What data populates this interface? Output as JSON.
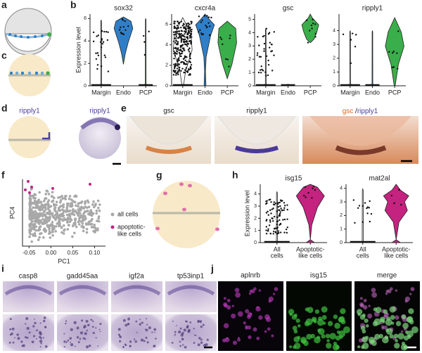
{
  "panel_labels": {
    "a": "a",
    "b": "b",
    "c": "c",
    "d": "d",
    "e": "e",
    "f": "f",
    "g": "g",
    "h": "h",
    "i": "i",
    "j": "j"
  },
  "chart_b": {
    "type": "violin",
    "y_label": "Expression level",
    "categories": [
      "Margin",
      "Endo",
      "PCP"
    ],
    "colors": [
      "#ffffff",
      "#2f7fc8",
      "#3aae4a"
    ],
    "plots": [
      {
        "title": "sox32",
        "ylim": [
          0,
          6.4
        ],
        "yticks": [
          0,
          2,
          4,
          6
        ]
      },
      {
        "title": "cxcr4a",
        "ylim": [
          0,
          7
        ],
        "yticks": [
          0,
          2,
          4,
          6
        ]
      },
      {
        "title": "gsc",
        "ylim": [
          0,
          5.4
        ],
        "yticks": [
          0,
          1,
          2,
          3,
          4,
          5
        ]
      },
      {
        "title": "ripply1",
        "ylim": [
          0,
          5.2
        ],
        "yticks": [
          0,
          1,
          2,
          3,
          4
        ]
      }
    ]
  },
  "panel_d": {
    "schematic_label": "ripply1",
    "image_label": "ripply1"
  },
  "panel_e": {
    "images": [
      "gsc",
      "ripply1"
    ],
    "merge": {
      "first": "gsc",
      "separator": "/",
      "second": "ripply1"
    }
  },
  "chart_f": {
    "type": "scatter",
    "x_label": "PC1",
    "y_label": "PC4",
    "xlim": [
      -0.065,
      0.125
    ],
    "xticks": [
      -0.05,
      {
        "value": 0,
        "label": "0.00"
      },
      0.05,
      {
        "value": 0.1,
        "label": "0.10"
      }
    ],
    "legend": [
      {
        "name_lines": [
          "all cells"
        ],
        "color": "#a8a8a8"
      },
      {
        "name_lines": [
          "apoptotic-",
          "like cells"
        ],
        "color": "#c4237f"
      }
    ]
  },
  "chart_h": {
    "type": "violin",
    "y_label": "Expression level",
    "categories": [
      [
        "All",
        "cells"
      ],
      [
        "Apoptotic-",
        "like cells"
      ]
    ],
    "colors": [
      "#ffffff",
      "#c4237f"
    ],
    "plots": [
      {
        "title": "isg15",
        "ylim": [
          0,
          4.8
        ],
        "yticks": [
          0,
          1,
          2,
          3,
          4
        ]
      },
      {
        "title": "mat2al",
        "ylim": [
          0,
          4.3
        ],
        "yticks": [
          0,
          1,
          2,
          3,
          4
        ]
      }
    ]
  },
  "panel_i": [
    "casp8",
    "gadd45aa",
    "igf2a",
    "tp53inp1"
  ],
  "panel_j": [
    {
      "text": "aplnrb",
      "color": "#c23ec2"
    },
    {
      "text": "isg15",
      "color": "#3fbf3f"
    },
    {
      "text": "merge",
      "color": "#ffffff"
    }
  ]
}
